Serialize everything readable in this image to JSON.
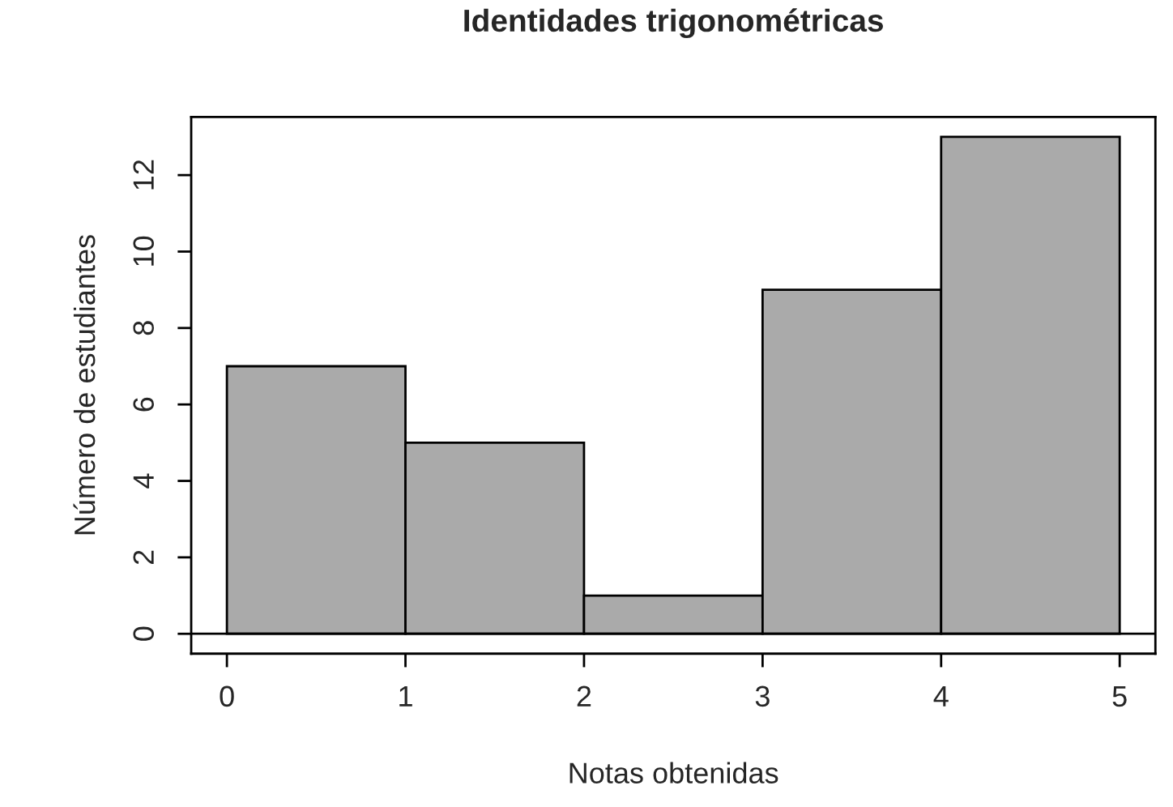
{
  "chart_data": {
    "type": "histogram",
    "title": "Identidades trigonométricas",
    "xlabel": "Notas obtenidas",
    "ylabel": "Número de estudiantes",
    "bins": [
      0,
      1,
      2,
      3,
      4,
      5
    ],
    "values": [
      7,
      5,
      1,
      9,
      13
    ],
    "color": "#aaaaaa",
    "xlim": [
      -0.2,
      5.2
    ],
    "xticks": [
      0,
      1,
      2,
      3,
      4,
      5
    ],
    "ylim": [
      -0.52,
      13.52
    ],
    "yticks": [
      0,
      2,
      4,
      6,
      8,
      10,
      12
    ],
    "ref_lines": [
      {
        "axis": "y",
        "value": 0,
        "color": "#000000"
      }
    ],
    "grid": false,
    "legend": false
  }
}
